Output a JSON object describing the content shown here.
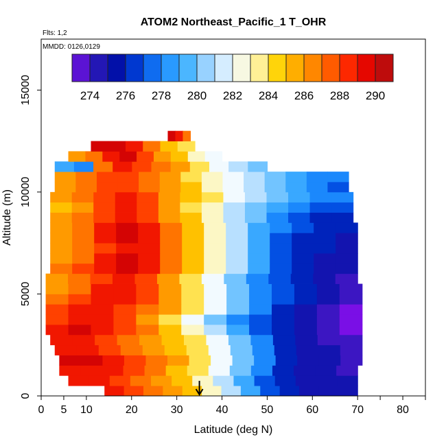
{
  "chart_data": {
    "type": "heatmap",
    "title": "ATOM2 Northeast_Pacific_1 T_OHR",
    "flights_label": "Flts: 1,2",
    "dates_label": "MMDD: 0126,0129",
    "xlabel": "Latitude (deg N)",
    "ylabel": "Altitude (m)",
    "xlim": [
      0,
      85
    ],
    "ylim": [
      0,
      17500
    ],
    "x_ticks": [
      0,
      5,
      10,
      20,
      30,
      40,
      50,
      60,
      70,
      80
    ],
    "x_minor_ticks": [
      75,
      85
    ],
    "y_ticks": [
      0,
      5000,
      10000,
      15000
    ],
    "colorbar": {
      "min": 273,
      "max": 291,
      "ticks": [
        274,
        276,
        278,
        280,
        282,
        284,
        286,
        288,
        290
      ],
      "colors": [
        "#7a0fe6",
        "#2a18b8",
        "#0010a8",
        "#0048e0",
        "#1e90ff",
        "#46b4ff",
        "#a8d8ff",
        "#f2faff",
        "#fff6b4",
        "#ffd200",
        "#ffa000",
        "#ff6e00",
        "#ff2a00",
        "#e00000",
        "#a81414"
      ]
    },
    "marker_latitude": 35,
    "altitude_bands": [
      {
        "alt": 250,
        "x0": 14,
        "x1": 70,
        "temps": [
          289,
          288,
          287,
          286,
          285,
          283,
          281,
          279,
          277,
          276,
          275,
          275,
          275
        ]
      },
      {
        "alt": 750,
        "x0": 6,
        "x1": 70,
        "temps": [
          289,
          289,
          288,
          287,
          286,
          285,
          283,
          281,
          279,
          277,
          276,
          275,
          275,
          275
        ]
      },
      {
        "alt": 1250,
        "x0": 4,
        "x1": 70,
        "temps": [
          289,
          289,
          289,
          288,
          287,
          285,
          284,
          282,
          280,
          278,
          276,
          275,
          275,
          274
        ]
      },
      {
        "alt": 1750,
        "x0": 4,
        "x1": 71,
        "temps": [
          290,
          290,
          289,
          288,
          287,
          286,
          284,
          282,
          280,
          278,
          276,
          275,
          275,
          274
        ]
      },
      {
        "alt": 2250,
        "x0": 3,
        "x1": 71,
        "temps": [
          289,
          289,
          288,
          287,
          286,
          285,
          284,
          282,
          280,
          278,
          276,
          275,
          275,
          274
        ]
      },
      {
        "alt": 2750,
        "x0": 2,
        "x1": 71,
        "temps": [
          289,
          289,
          288,
          287,
          286,
          285,
          284,
          282,
          280,
          278,
          276,
          275,
          274,
          274
        ]
      },
      {
        "alt": 3250,
        "x0": 1,
        "x1": 71,
        "temps": [
          289,
          290,
          289,
          288,
          287,
          285,
          283,
          281,
          279,
          277,
          276,
          275,
          274,
          273
        ]
      },
      {
        "alt": 3750,
        "x0": 1,
        "x1": 71,
        "temps": [
          288,
          289,
          289,
          288,
          286,
          284,
          282,
          280,
          278,
          277,
          276,
          275,
          274,
          273
        ]
      },
      {
        "alt": 4250,
        "x0": 1,
        "x1": 71,
        "temps": [
          288,
          289,
          289,
          288,
          287,
          286,
          284,
          282,
          280,
          278,
          276,
          275,
          274,
          273
        ]
      },
      {
        "alt": 4750,
        "x0": 1,
        "x1": 71,
        "temps": [
          287,
          288,
          289,
          289,
          288,
          286,
          284,
          282,
          280,
          278,
          277,
          276,
          275,
          274
        ]
      },
      {
        "alt": 5250,
        "x0": 1,
        "x1": 71,
        "temps": [
          286,
          287,
          289,
          289,
          288,
          286,
          284,
          282,
          280,
          278,
          277,
          276,
          275,
          274
        ]
      },
      {
        "alt": 5750,
        "x0": 1,
        "x1": 70,
        "temps": [
          286,
          287,
          288,
          289,
          288,
          286,
          284,
          282,
          280,
          278,
          277,
          276,
          275,
          274
        ]
      },
      {
        "alt": 6250,
        "x0": 2,
        "x1": 70,
        "temps": [
          287,
          288,
          289,
          290,
          289,
          287,
          285,
          283,
          281,
          279,
          277,
          276,
          275,
          275
        ]
      },
      {
        "alt": 6750,
        "x0": 2,
        "x1": 70,
        "temps": [
          286,
          287,
          289,
          290,
          289,
          287,
          285,
          283,
          281,
          279,
          277,
          276,
          275,
          275
        ]
      },
      {
        "alt": 7250,
        "x0": 2,
        "x1": 70,
        "temps": [
          286,
          287,
          288,
          289,
          289,
          287,
          285,
          283,
          281,
          279,
          277,
          276,
          276,
          275
        ]
      },
      {
        "alt": 7750,
        "x0": 2,
        "x1": 70,
        "temps": [
          286,
          287,
          289,
          290,
          289,
          287,
          285,
          283,
          281,
          279,
          277,
          276,
          276,
          275
        ]
      },
      {
        "alt": 8250,
        "x0": 2,
        "x1": 70,
        "temps": [
          286,
          287,
          289,
          290,
          289,
          287,
          285,
          283,
          281,
          279,
          278,
          277,
          276,
          276
        ]
      },
      {
        "alt": 8750,
        "x0": 2,
        "x1": 69,
        "temps": [
          286,
          287,
          288,
          289,
          288,
          286,
          285,
          283,
          281,
          280,
          278,
          277,
          276,
          276
        ]
      },
      {
        "alt": 9250,
        "x0": 2,
        "x1": 69,
        "temps": [
          285,
          286,
          288,
          289,
          288,
          286,
          284,
          283,
          281,
          280,
          279,
          278,
          277,
          277
        ]
      },
      {
        "alt": 9750,
        "x0": 2,
        "x1": 69,
        "temps": [
          286,
          287,
          288,
          289,
          288,
          286,
          285,
          284,
          282,
          281,
          280,
          279,
          278,
          278
        ]
      },
      {
        "alt": 10250,
        "x0": 3,
        "x1": 68,
        "temps": [
          286,
          287,
          288,
          288,
          287,
          286,
          285,
          283,
          282,
          281,
          280,
          279,
          278,
          277
        ]
      },
      {
        "alt": 10750,
        "x0": 3,
        "x1": 68,
        "temps": [
          286,
          287,
          288,
          288,
          287,
          286,
          284,
          283,
          282,
          281,
          280,
          279,
          278,
          278
        ]
      },
      {
        "alt": 11250,
        "x0": 3,
        "x1": 50,
        "temps": [
          279,
          278,
          287,
          289,
          288,
          287,
          286,
          284,
          282,
          281,
          280
        ]
      },
      {
        "alt": 11750,
        "x0": 6,
        "x1": 40,
        "temps": [
          286,
          287,
          289,
          290,
          288,
          286,
          285,
          283,
          282
        ]
      },
      {
        "alt": 12250,
        "x0": 11,
        "x1": 34,
        "temps": [
          290,
          290,
          289,
          287,
          285,
          284
        ]
      },
      {
        "alt": 12750,
        "x0": 28,
        "x1": 33,
        "temps": [
          290,
          289,
          287
        ]
      }
    ]
  }
}
